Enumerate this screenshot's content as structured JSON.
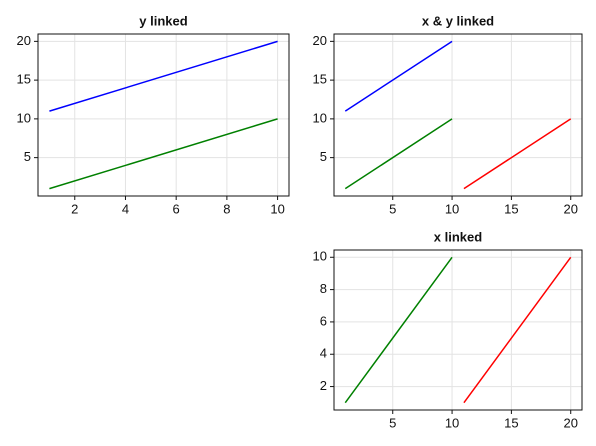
{
  "chart_data": [
    {
      "type": "line",
      "title": "y linked",
      "xlim": [
        0.55,
        10.45
      ],
      "xticks": [
        2,
        4,
        6,
        8,
        10
      ],
      "ylim": [
        0.05,
        20.95
      ],
      "yticks": [
        5,
        10,
        15,
        20
      ],
      "grid": true,
      "series": [
        {
          "color": "#0000ff",
          "x": [
            1,
            10
          ],
          "values": [
            11,
            20
          ]
        },
        {
          "color": "#008000",
          "x": [
            1,
            10
          ],
          "values": [
            1,
            10
          ]
        }
      ]
    },
    {
      "type": "line",
      "title": "x & y linked",
      "xlim": [
        0.05,
        20.95
      ],
      "xticks": [
        5,
        10,
        15,
        20
      ],
      "ylim": [
        0.05,
        20.95
      ],
      "yticks": [
        5,
        10,
        15,
        20
      ],
      "grid": true,
      "series": [
        {
          "color": "#0000ff",
          "x": [
            1,
            10
          ],
          "values": [
            11,
            20
          ]
        },
        {
          "color": "#008000",
          "x": [
            1,
            10
          ],
          "values": [
            1,
            10
          ]
        },
        {
          "color": "#ff0000",
          "x": [
            11,
            20
          ],
          "values": [
            1,
            10
          ]
        }
      ]
    },
    {
      "type": "line",
      "title": "x linked",
      "xlim": [
        0.05,
        20.95
      ],
      "xticks": [
        5,
        10,
        15,
        20
      ],
      "ylim": [
        0.55,
        10.45
      ],
      "yticks": [
        2,
        4,
        6,
        8,
        10
      ],
      "grid": true,
      "series": [
        {
          "color": "#008000",
          "x": [
            1,
            10
          ],
          "values": [
            1,
            10
          ]
        },
        {
          "color": "#ff0000",
          "x": [
            11,
            20
          ],
          "values": [
            1,
            10
          ]
        }
      ]
    }
  ]
}
